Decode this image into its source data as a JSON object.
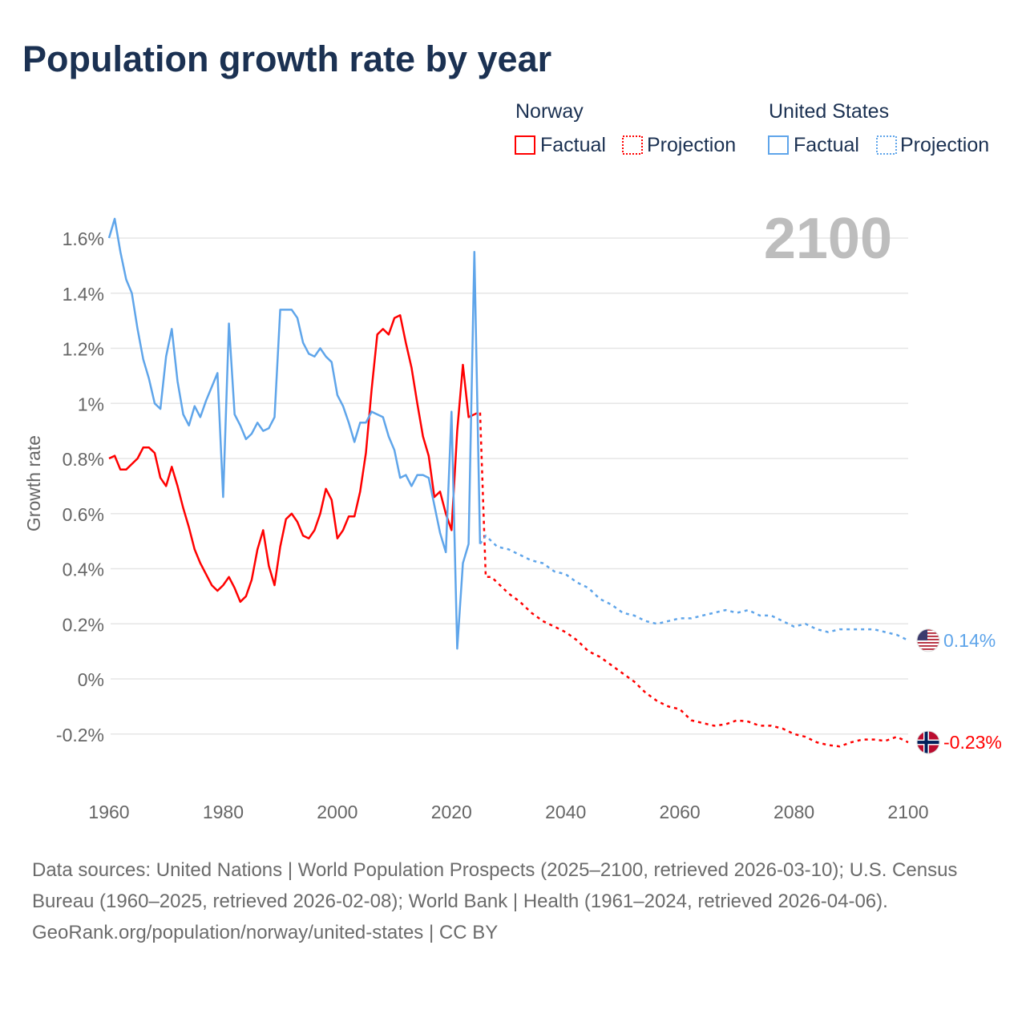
{
  "title": "Population growth rate by year",
  "legend": {
    "groups": [
      {
        "country": "Norway",
        "factual": "Factual",
        "projection": "Projection",
        "color": "#ff0000"
      },
      {
        "country": "United States",
        "factual": "Factual",
        "projection": "Projection",
        "color": "#5fa5ea"
      }
    ]
  },
  "footer": {
    "sources": "Data sources: United Nations | World Population Prospects (2025–2100, retrieved 2026-03-10); U.S. Census Bureau (1960–2025, retrieved 2026-02-08); World Bank | Health (1961–2024, retrieved 2026-04-06).",
    "credit": "GeoRank.org/population/norway/united-states | CC BY"
  },
  "chart_data": {
    "type": "line",
    "title": "Population growth rate by year",
    "xlabel": "",
    "ylabel": "Growth rate",
    "year_label": "2100",
    "xlim": [
      1960,
      2100
    ],
    "ylim": [
      -0.3,
      1.7
    ],
    "x_ticks": [
      1960,
      1980,
      2000,
      2020,
      2040,
      2060,
      2080,
      2100
    ],
    "x_tick_labels": [
      "1960",
      "1980",
      "2000",
      "2020",
      "2040",
      "2060",
      "2080",
      "2100"
    ],
    "y_ticks": [
      -0.2,
      0,
      0.2,
      0.4,
      0.6,
      0.8,
      1.0,
      1.2,
      1.4,
      1.6
    ],
    "y_tick_labels": [
      "-0.2%",
      "0%",
      "0.2%",
      "0.4%",
      "0.6%",
      "0.8%",
      "1%",
      "1.2%",
      "1.4%",
      "1.6%"
    ],
    "grid": true,
    "legend_placement": "top-right",
    "series": [
      {
        "name": "Norway",
        "kind": "Factual",
        "color": "#ff0000",
        "x": [
          1960,
          1961,
          1962,
          1963,
          1964,
          1965,
          1966,
          1967,
          1968,
          1969,
          1970,
          1971,
          1972,
          1973,
          1974,
          1975,
          1976,
          1977,
          1978,
          1979,
          1980,
          1981,
          1982,
          1983,
          1984,
          1985,
          1986,
          1987,
          1988,
          1989,
          1990,
          1991,
          1992,
          1993,
          1994,
          1995,
          1996,
          1997,
          1998,
          1999,
          2000,
          2001,
          2002,
          2003,
          2004,
          2005,
          2006,
          2007,
          2008,
          2009,
          2010,
          2011,
          2012,
          2013,
          2014,
          2015,
          2016,
          2017,
          2018,
          2019,
          2020,
          2021,
          2022,
          2023,
          2024
        ],
        "y": [
          0.8,
          0.81,
          0.76,
          0.76,
          0.78,
          0.8,
          0.84,
          0.84,
          0.82,
          0.73,
          0.7,
          0.77,
          0.7,
          0.62,
          0.55,
          0.47,
          0.42,
          0.38,
          0.34,
          0.32,
          0.34,
          0.37,
          0.33,
          0.28,
          0.3,
          0.36,
          0.47,
          0.54,
          0.41,
          0.34,
          0.48,
          0.58,
          0.6,
          0.57,
          0.52,
          0.51,
          0.54,
          0.6,
          0.69,
          0.65,
          0.51,
          0.54,
          0.59,
          0.59,
          0.68,
          0.82,
          1.05,
          1.25,
          1.27,
          1.25,
          1.31,
          1.32,
          1.22,
          1.13,
          1.0,
          0.88,
          0.81,
          0.66,
          0.68,
          0.6,
          0.54,
          0.9,
          1.14,
          0.95,
          0.96
        ]
      },
      {
        "name": "Norway",
        "kind": "Projection",
        "color": "#ff0000",
        "x": [
          2024,
          2025,
          2026,
          2027,
          2028,
          2030,
          2032,
          2034,
          2036,
          2038,
          2040,
          2042,
          2044,
          2046,
          2048,
          2050,
          2052,
          2054,
          2056,
          2058,
          2060,
          2062,
          2064,
          2066,
          2068,
          2070,
          2072,
          2074,
          2076,
          2078,
          2080,
          2082,
          2084,
          2086,
          2088,
          2090,
          2092,
          2094,
          2096,
          2098,
          2100
        ],
        "y": [
          0.96,
          0.97,
          0.37,
          0.37,
          0.35,
          0.31,
          0.28,
          0.24,
          0.21,
          0.19,
          0.17,
          0.14,
          0.1,
          0.08,
          0.05,
          0.02,
          -0.01,
          -0.05,
          -0.08,
          -0.1,
          -0.11,
          -0.15,
          -0.16,
          -0.17,
          -0.165,
          -0.15,
          -0.155,
          -0.17,
          -0.17,
          -0.18,
          -0.2,
          -0.21,
          -0.23,
          -0.24,
          -0.245,
          -0.23,
          -0.22,
          -0.22,
          -0.225,
          -0.21,
          -0.23
        ],
        "end_label": "-0.23%"
      },
      {
        "name": "United States",
        "kind": "Factual",
        "color": "#5fa5ea",
        "x": [
          1960,
          1961,
          1962,
          1963,
          1964,
          1965,
          1966,
          1967,
          1968,
          1969,
          1970,
          1971,
          1972,
          1973,
          1974,
          1975,
          1976,
          1977,
          1978,
          1979,
          1980,
          1981,
          1982,
          1983,
          1984,
          1985,
          1986,
          1987,
          1988,
          1989,
          1990,
          1991,
          1992,
          1993,
          1994,
          1995,
          1996,
          1997,
          1998,
          1999,
          2000,
          2001,
          2002,
          2003,
          2004,
          2005,
          2006,
          2007,
          2008,
          2009,
          2010,
          2011,
          2012,
          2013,
          2014,
          2015,
          2016,
          2017,
          2018,
          2019,
          2020,
          2021,
          2022,
          2023,
          2024,
          2025
        ],
        "y": [
          1.6,
          1.67,
          1.55,
          1.45,
          1.4,
          1.27,
          1.16,
          1.09,
          1.0,
          0.98,
          1.17,
          1.27,
          1.08,
          0.96,
          0.92,
          0.99,
          0.95,
          1.01,
          1.06,
          1.11,
          0.66,
          1.29,
          0.96,
          0.92,
          0.87,
          0.89,
          0.93,
          0.9,
          0.91,
          0.95,
          1.34,
          1.34,
          1.34,
          1.31,
          1.22,
          1.18,
          1.17,
          1.2,
          1.17,
          1.15,
          1.03,
          0.99,
          0.93,
          0.86,
          0.93,
          0.93,
          0.97,
          0.96,
          0.95,
          0.88,
          0.83,
          0.73,
          0.74,
          0.7,
          0.74,
          0.74,
          0.73,
          0.63,
          0.53,
          0.46,
          0.97,
          0.11,
          0.42,
          0.49,
          1.55,
          0.49
        ]
      },
      {
        "name": "United States",
        "kind": "Projection",
        "color": "#5fa5ea",
        "x": [
          2025,
          2026,
          2028,
          2030,
          2032,
          2034,
          2036,
          2038,
          2040,
          2042,
          2044,
          2046,
          2048,
          2050,
          2052,
          2054,
          2056,
          2058,
          2060,
          2062,
          2064,
          2066,
          2068,
          2070,
          2072,
          2074,
          2076,
          2078,
          2080,
          2082,
          2084,
          2086,
          2088,
          2090,
          2092,
          2094,
          2096,
          2098,
          2100
        ],
        "y": [
          0.49,
          0.52,
          0.48,
          0.47,
          0.45,
          0.43,
          0.42,
          0.39,
          0.38,
          0.35,
          0.33,
          0.29,
          0.27,
          0.24,
          0.23,
          0.21,
          0.2,
          0.21,
          0.22,
          0.22,
          0.23,
          0.24,
          0.25,
          0.24,
          0.25,
          0.23,
          0.23,
          0.21,
          0.19,
          0.2,
          0.18,
          0.17,
          0.18,
          0.18,
          0.18,
          0.18,
          0.17,
          0.16,
          0.14
        ],
        "end_label": "0.14%"
      }
    ]
  }
}
